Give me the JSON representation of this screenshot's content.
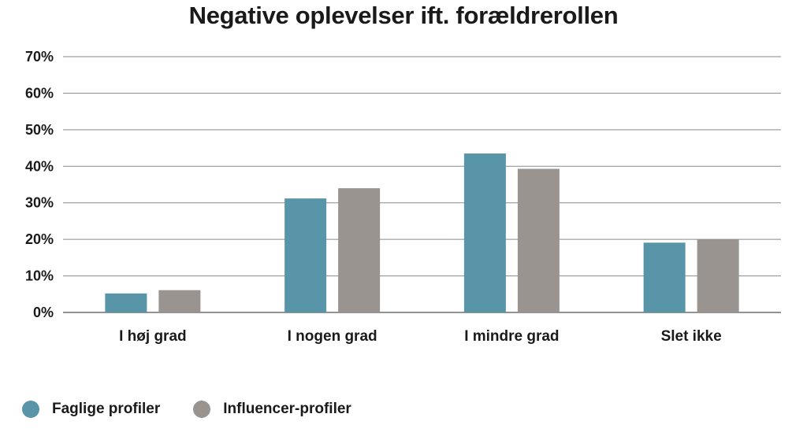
{
  "chart_data": {
    "type": "bar",
    "title": "Negative oplevelser ift. forældrerollen",
    "categories": [
      "I høj grad",
      "I nogen grad",
      "I mindre grad",
      "Slet ikke"
    ],
    "series": [
      {
        "name": "Faglige profiler",
        "values": [
          5.2,
          31.2,
          43.5,
          19.1
        ],
        "color": "#5895a9"
      },
      {
        "name": "Influencer-profiler",
        "values": [
          6.1,
          34.0,
          39.3,
          20.0
        ],
        "color": "#9a9490"
      }
    ],
    "ylim": [
      0,
      70
    ],
    "yticks": [
      "0%",
      "10%",
      "20%",
      "30%",
      "40%",
      "50%",
      "60%",
      "70%"
    ],
    "grid": true,
    "legend": "bottom-left"
  }
}
